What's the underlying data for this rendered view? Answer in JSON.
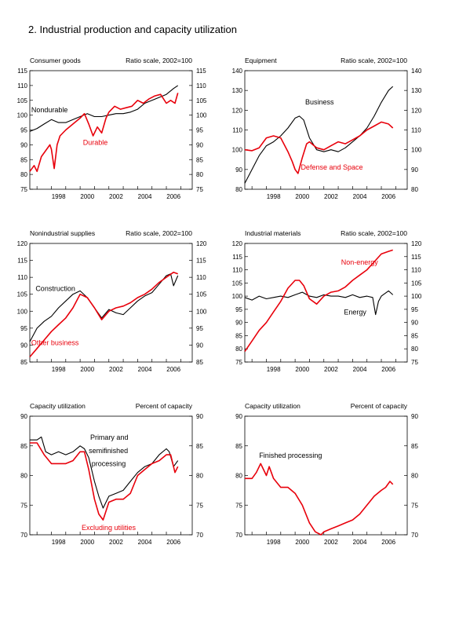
{
  "page": {
    "title": "2.  Industrial production and capacity utilization"
  },
  "colors": {
    "black_series": "#000000",
    "red_series": "#e8000b",
    "axis": "#000000"
  },
  "chart_data": [
    {
      "type": "line",
      "title": "Consumer goods",
      "scale_label": "Ratio scale, 2002=100",
      "xlim": [
        1996.5,
        2007.8
      ],
      "ylim": [
        75,
        115
      ],
      "yticks": [
        75,
        80,
        85,
        90,
        95,
        100,
        105,
        110,
        115
      ],
      "xticks": [
        1998,
        2000,
        2002,
        2004,
        2006
      ],
      "series": [
        {
          "name": "Nondurable",
          "color": "#000000",
          "x": [
            1996.5,
            1997.0,
            1997.5,
            1998.0,
            1998.5,
            1999.0,
            1999.5,
            2000.0,
            2000.5,
            2001.0,
            2001.5,
            2002.0,
            2002.5,
            2003.0,
            2003.5,
            2004.0,
            2004.5,
            2005.0,
            2005.5,
            2006.0,
            2006.5,
            2006.8
          ],
          "y": [
            94.5,
            95.5,
            97,
            98.5,
            97.5,
            97.5,
            98.5,
            99.5,
            100.5,
            99.5,
            99.5,
            100,
            100.5,
            100.5,
            101,
            102,
            104,
            105,
            106,
            107,
            109,
            110
          ]
        },
        {
          "name": "Durable",
          "color": "#e8000b",
          "x": [
            1996.5,
            1996.8,
            1997.0,
            1997.3,
            1997.6,
            1997.9,
            1998.0,
            1998.2,
            1998.4,
            1998.6,
            1999.0,
            1999.5,
            2000.0,
            2000.3,
            2000.6,
            2000.9,
            2001.2,
            2001.5,
            2001.8,
            2002.0,
            2002.4,
            2002.8,
            2003.2,
            2003.6,
            2004.0,
            2004.4,
            2004.8,
            2005.2,
            2005.6,
            2006.0,
            2006.3,
            2006.6,
            2006.8
          ],
          "y": [
            81,
            83,
            81,
            86,
            88,
            90,
            88.5,
            82,
            90,
            93,
            95,
            97,
            99,
            100.5,
            97,
            93,
            96,
            94,
            99,
            101,
            103,
            102,
            102.5,
            103,
            105,
            104,
            105.5,
            106.5,
            107,
            104,
            105,
            104,
            107.5
          ]
        }
      ],
      "annotations": [
        {
          "text": "Nondurable",
          "x": 1996.6,
          "y": 101,
          "color": "#000000"
        },
        {
          "text": "Durable",
          "x": 2000.2,
          "y": 90,
          "color": "#e8000b"
        }
      ]
    },
    {
      "type": "line",
      "title": "Equipment",
      "scale_label": "Ratio scale, 2002=100",
      "xlim": [
        1996.5,
        2007.8
      ],
      "ylim": [
        80,
        140
      ],
      "yticks": [
        80,
        90,
        100,
        110,
        120,
        130,
        140
      ],
      "xticks": [
        1998,
        2000,
        2002,
        2004,
        2006
      ],
      "series": [
        {
          "name": "Business",
          "color": "#000000",
          "x": [
            1996.5,
            1997.0,
            1997.5,
            1998.0,
            1998.5,
            1999.0,
            1999.5,
            2000.0,
            2000.3,
            2000.6,
            2001.0,
            2001.5,
            2002.0,
            2002.5,
            2003.0,
            2003.5,
            2004.0,
            2004.5,
            2005.0,
            2005.5,
            2006.0,
            2006.5,
            2006.8
          ],
          "y": [
            83,
            90,
            97,
            102,
            104,
            107,
            111,
            116,
            117,
            115,
            106,
            100,
            99,
            100,
            99,
            101,
            104,
            107,
            111,
            117,
            124,
            130,
            132
          ]
        },
        {
          "name": "Defense and Space",
          "color": "#e8000b",
          "x": [
            1996.5,
            1997.0,
            1997.5,
            1998.0,
            1998.5,
            1999.0,
            1999.5,
            1999.8,
            2000.0,
            2000.2,
            2000.5,
            2000.8,
            2001.0,
            2001.5,
            2002.0,
            2002.5,
            2003.0,
            2003.5,
            2004.0,
            2004.5,
            2005.0,
            2005.5,
            2006.0,
            2006.5,
            2006.8
          ],
          "y": [
            100,
            99.5,
            101,
            106,
            107,
            106,
            99,
            94,
            90,
            88,
            96,
            103,
            104,
            101,
            100,
            102,
            104,
            103,
            105,
            107,
            110,
            112,
            114,
            113,
            111
          ]
        }
      ],
      "annotations": [
        {
          "text": "Business",
          "x": 2000.7,
          "y": 123,
          "color": "#000000"
        },
        {
          "text": "Defense and Space",
          "x": 2000.4,
          "y": 90,
          "color": "#e8000b"
        }
      ]
    },
    {
      "type": "line",
      "title": "Nonindustrial supplies",
      "scale_label": "Ratio scale, 2002=100",
      "xlim": [
        1996.5,
        2007.8
      ],
      "ylim": [
        85,
        120
      ],
      "yticks": [
        85,
        90,
        95,
        100,
        105,
        110,
        115,
        120
      ],
      "xticks": [
        1998,
        2000,
        2002,
        2004,
        2006
      ],
      "series": [
        {
          "name": "Construction",
          "color": "#000000",
          "x": [
            1996.5,
            1997.0,
            1997.5,
            1998.0,
            1998.5,
            1999.0,
            1999.5,
            2000.0,
            2000.5,
            2001.0,
            2001.5,
            2002.0,
            2002.5,
            2003.0,
            2003.5,
            2004.0,
            2004.5,
            2005.0,
            2005.5,
            2006.0,
            2006.3,
            2006.5,
            2006.8
          ],
          "y": [
            91,
            95,
            97,
            98.5,
            101,
            103,
            105,
            106,
            104,
            101,
            98,
            100.5,
            99.5,
            99,
            101,
            103,
            104.5,
            105.5,
            108,
            110.5,
            111,
            107.5,
            110.5
          ]
        },
        {
          "name": "Other business",
          "color": "#e8000b",
          "x": [
            1996.5,
            1997.0,
            1997.5,
            1998.0,
            1998.5,
            1999.0,
            1999.5,
            2000.0,
            2000.5,
            2001.0,
            2001.5,
            2002.0,
            2002.5,
            2003.0,
            2003.5,
            2004.0,
            2004.5,
            2005.0,
            2005.5,
            2006.0,
            2006.5,
            2006.8
          ],
          "y": [
            86.5,
            89,
            91.5,
            94,
            96,
            98,
            101,
            105,
            104,
            101,
            97.5,
            100,
            101,
            101.5,
            102.5,
            104,
            105,
            106.5,
            108.5,
            110,
            111.5,
            111
          ]
        }
      ],
      "annotations": [
        {
          "text": "Construction",
          "x": 1996.9,
          "y": 106,
          "color": "#000000"
        },
        {
          "text": "Other business",
          "x": 1996.6,
          "y": 90,
          "color": "#e8000b"
        }
      ]
    },
    {
      "type": "line",
      "title": "Industrial materials",
      "scale_label": "Ratio scale, 2002=100",
      "xlim": [
        1996.5,
        2007.8
      ],
      "ylim": [
        75,
        120
      ],
      "yticks": [
        75,
        80,
        85,
        90,
        95,
        100,
        105,
        110,
        115,
        120
      ],
      "xticks": [
        1998,
        2000,
        2002,
        2004,
        2006
      ],
      "series": [
        {
          "name": "Energy",
          "color": "#000000",
          "x": [
            1996.5,
            1997.0,
            1997.5,
            1998.0,
            1998.5,
            1999.0,
            1999.5,
            2000.0,
            2000.5,
            2001.0,
            2001.5,
            2002.0,
            2002.5,
            2003.0,
            2003.5,
            2004.0,
            2004.5,
            2005.0,
            2005.4,
            2005.6,
            2005.8,
            2006.0,
            2006.5,
            2006.8
          ],
          "y": [
            99.5,
            98.5,
            100,
            99,
            99.5,
            100,
            99.5,
            100.5,
            101.5,
            100,
            99.5,
            100.5,
            100,
            100,
            99.5,
            100.5,
            99.5,
            100,
            99.5,
            93,
            98,
            100,
            102,
            100.5
          ]
        },
        {
          "name": "Non-energy",
          "color": "#e8000b",
          "x": [
            1996.5,
            1997.0,
            1997.5,
            1998.0,
            1998.5,
            1999.0,
            1999.5,
            2000.0,
            2000.3,
            2000.6,
            2001.0,
            2001.5,
            2002.0,
            2002.5,
            2003.0,
            2003.5,
            2004.0,
            2004.5,
            2005.0,
            2005.5,
            2006.0,
            2006.5,
            2006.8
          ],
          "y": [
            79,
            83,
            87,
            90,
            94,
            98,
            103,
            106,
            106,
            104,
            99,
            97,
            100,
            101.5,
            102,
            103.5,
            106,
            108,
            110,
            113,
            116,
            117,
            117.5
          ]
        }
      ],
      "annotations": [
        {
          "text": "Non-energy",
          "x": 2003.2,
          "y": 112,
          "color": "#e8000b"
        },
        {
          "text": "Energy",
          "x": 2003.4,
          "y": 93,
          "color": "#000000"
        }
      ]
    },
    {
      "type": "line",
      "title": "Capacity utilization",
      "scale_label": "Percent of capacity",
      "xlim": [
        1996.5,
        2007.8
      ],
      "ylim": [
        70,
        90
      ],
      "yticks": [
        70,
        75,
        80,
        85,
        90
      ],
      "xticks": [
        1998,
        2000,
        2002,
        2004,
        2006
      ],
      "series": [
        {
          "name": "Primary and semifinished processing",
          "color": "#000000",
          "x": [
            1996.5,
            1997.0,
            1997.3,
            1997.6,
            1998.0,
            1998.5,
            1999.0,
            1999.5,
            2000.0,
            2000.3,
            2000.6,
            2001.0,
            2001.3,
            2001.6,
            2002.0,
            2002.5,
            2003.0,
            2003.5,
            2004.0,
            2004.5,
            2005.0,
            2005.5,
            2006.0,
            2006.2,
            2006.5,
            2006.8
          ],
          "y": [
            86,
            86,
            86.5,
            84,
            83.5,
            84,
            83.5,
            84,
            85,
            84.5,
            83,
            79,
            76.5,
            74.5,
            76.5,
            77,
            77.5,
            79,
            80.5,
            81.5,
            82,
            83.5,
            84.5,
            84,
            81.5,
            82.5
          ]
        },
        {
          "name": "Excluding utilities",
          "color": "#e8000b",
          "x": [
            1996.5,
            1997.0,
            1997.5,
            1998.0,
            1998.5,
            1999.0,
            1999.5,
            2000.0,
            2000.3,
            2000.6,
            2001.0,
            2001.3,
            2001.6,
            2002.0,
            2002.5,
            2003.0,
            2003.5,
            2004.0,
            2004.5,
            2005.0,
            2005.5,
            2006.0,
            2006.3,
            2006.6,
            2006.8
          ],
          "y": [
            85.5,
            85.5,
            83.5,
            82,
            82,
            82,
            82.5,
            84,
            84,
            81,
            76,
            73.5,
            72.5,
            75.5,
            76,
            76,
            77,
            80,
            81,
            82,
            82.5,
            83.5,
            83.5,
            80.5,
            81.5
          ]
        }
      ],
      "annotations": [
        {
          "text": "Primary and",
          "x": 2000.7,
          "y": 86,
          "color": "#000000"
        },
        {
          "text": "semifinished",
          "x": 2000.6,
          "y": 83.8,
          "color": "#000000"
        },
        {
          "text": "processing",
          "x": 2000.8,
          "y": 81.6,
          "color": "#000000"
        },
        {
          "text": "Excluding utilities",
          "x": 2000.1,
          "y": 70.8,
          "color": "#e8000b"
        }
      ]
    },
    {
      "type": "line",
      "title": "Capacity utilization",
      "scale_label": "Percent of capacity",
      "xlim": [
        1996.5,
        2007.8
      ],
      "ylim": [
        70,
        90
      ],
      "yticks": [
        70,
        75,
        80,
        85,
        90
      ],
      "xticks": [
        1998,
        2000,
        2002,
        2004,
        2006
      ],
      "series": [
        {
          "name": "Finished processing",
          "color": "#e8000b",
          "x": [
            1996.5,
            1997.0,
            1997.3,
            1997.6,
            1998.0,
            1998.2,
            1998.5,
            1999.0,
            1999.5,
            2000.0,
            2000.5,
            2001.0,
            2001.4,
            2001.8,
            2002.0,
            2002.5,
            2003.0,
            2003.5,
            2004.0,
            2004.5,
            2005.0,
            2005.5,
            2006.0,
            2006.3,
            2006.6,
            2006.8
          ],
          "y": [
            79.5,
            79.5,
            80.5,
            82,
            80,
            81.5,
            79.5,
            78,
            78,
            77,
            75,
            72,
            70.5,
            70,
            70.5,
            71,
            71.5,
            72,
            72.5,
            73.5,
            75,
            76.5,
            77.5,
            78,
            79,
            78.5
          ]
        }
      ],
      "annotations": [
        {
          "text": "Finished processing",
          "x": 1997.5,
          "y": 83,
          "color": "#000000"
        }
      ]
    }
  ]
}
